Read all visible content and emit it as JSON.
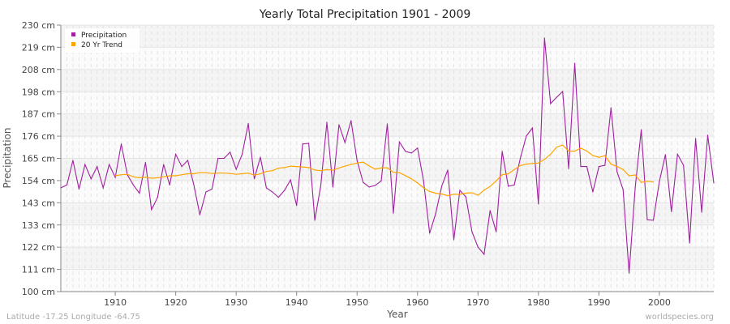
{
  "chart_data": {
    "type": "line",
    "title": "Yearly Total Precipitation 1901 - 2009",
    "xlabel": "Year",
    "ylabel": "Precipitation",
    "ylim": [
      100,
      230
    ],
    "xlim": [
      1901,
      2009
    ],
    "yticks": [
      "100 cm",
      "111 cm",
      "122 cm",
      "133 cm",
      "143 cm",
      "154 cm",
      "165 cm",
      "176 cm",
      "187 cm",
      "198 cm",
      "208 cm",
      "219 cm",
      "230 cm"
    ],
    "xticks": [
      1910,
      1920,
      1930,
      1940,
      1950,
      1960,
      1970,
      1980,
      1990,
      2000
    ],
    "grid": true,
    "legend_position": "top-left",
    "series": [
      {
        "name": "Precipitation",
        "color": "#a020a0",
        "start_year": 1901,
        "values": [
          150.6,
          152,
          164,
          150,
          162,
          155,
          161,
          150.6,
          162,
          155.7,
          172,
          157,
          152,
          148,
          163,
          140,
          146,
          162,
          152,
          167,
          161,
          164,
          152,
          137.5,
          148.6,
          150,
          165,
          165,
          168,
          159.7,
          167,
          182,
          155,
          165.6,
          150.6,
          148.6,
          146,
          149.4,
          154.5,
          142,
          172,
          172.3,
          134.8,
          151.8,
          182.6,
          151,
          181.4,
          172.7,
          183.4,
          164,
          153.3,
          151,
          151.8,
          154,
          181.8,
          138.3,
          173,
          168.4,
          167.6,
          170,
          154,
          128.5,
          138,
          151.4,
          159.3,
          125.3,
          149.4,
          146.2,
          129.2,
          121.7,
          118.2,
          139.5,
          129.2,
          168.4,
          151.4,
          152,
          165,
          175.9,
          179.8,
          142.7,
          223.7,
          191.7,
          194.8,
          197.6,
          160,
          211.4,
          161,
          161,
          148.6,
          161,
          161.6,
          189.7,
          158.5,
          149.8,
          109,
          150.6,
          179,
          135,
          134.8,
          153.7,
          166.8,
          139,
          167,
          161.6,
          123.7,
          174.7,
          138.7,
          176.3,
          153
        ]
      },
      {
        "name": "20 Yr Trend",
        "color": "#ffa500",
        "start_year": 1910,
        "values": [
          156.5,
          157,
          157.2,
          156,
          155.5,
          155.8,
          155.3,
          155.5,
          156,
          156.5,
          156.5,
          157,
          157.5,
          157.5,
          158,
          158,
          157.6,
          157.8,
          157.8,
          157.6,
          157.2,
          157.5,
          157.8,
          156.8,
          157.5,
          158.6,
          159,
          160.2,
          160.5,
          161.2,
          161,
          160.8,
          160.5,
          159.3,
          159,
          159.5,
          159.2,
          160.3,
          161.2,
          162,
          162.7,
          163.2,
          161.3,
          159.8,
          160.3,
          160.4,
          158.2,
          158,
          156.6,
          155,
          153,
          150.6,
          148.8,
          148,
          147.6,
          146.8,
          147.5,
          147.4,
          148,
          148.2,
          147,
          149.5,
          151.3,
          154,
          157,
          157.5,
          159.5,
          161.5,
          162.2,
          162.5,
          162.7,
          164.5,
          167,
          170.5,
          171.5,
          168.5,
          168.5,
          170,
          168.5,
          166.4,
          165.5,
          166.3,
          162.2,
          161,
          159.6,
          156.5,
          156.9,
          153.3,
          153.8,
          153.5
        ]
      }
    ]
  },
  "footer": {
    "coords": "Latitude -17.25 Longitude -64.75",
    "source": "worldspecies.org"
  }
}
